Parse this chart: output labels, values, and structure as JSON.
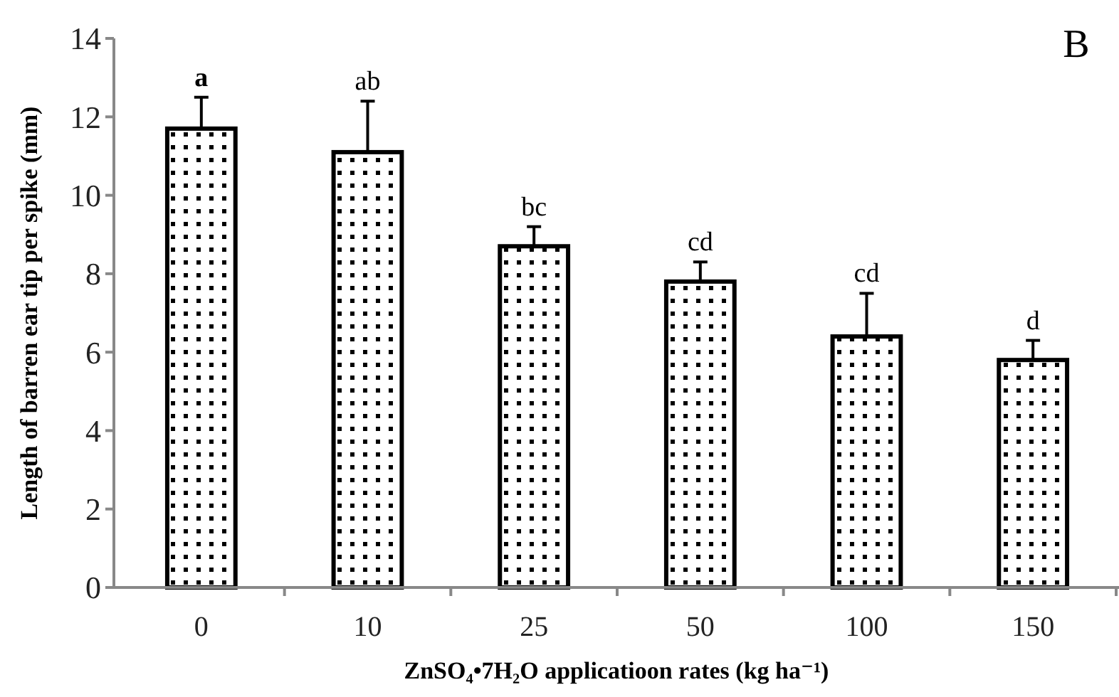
{
  "chart_data": {
    "type": "bar",
    "xlabel": "ZnSO₄•7H₂O applicatioon rates (kg ha⁻¹)",
    "ylabel": "Length of barren ear tip per spike (mm)",
    "categories": [
      "0",
      "10",
      "25",
      "50",
      "100",
      "150"
    ],
    "values": [
      11.7,
      11.1,
      8.7,
      7.8,
      6.4,
      5.8
    ],
    "errors": [
      0.8,
      1.3,
      0.5,
      0.5,
      1.1,
      0.5
    ],
    "value_labels": [
      "a",
      "ab",
      "bc",
      "cd",
      "cd",
      "d"
    ],
    "color": "#ffffff",
    "ylim": [
      0,
      14
    ],
    "yticks": [
      0,
      2,
      4,
      6,
      8,
      10,
      12,
      14
    ],
    "annotations": [
      "B"
    ]
  }
}
